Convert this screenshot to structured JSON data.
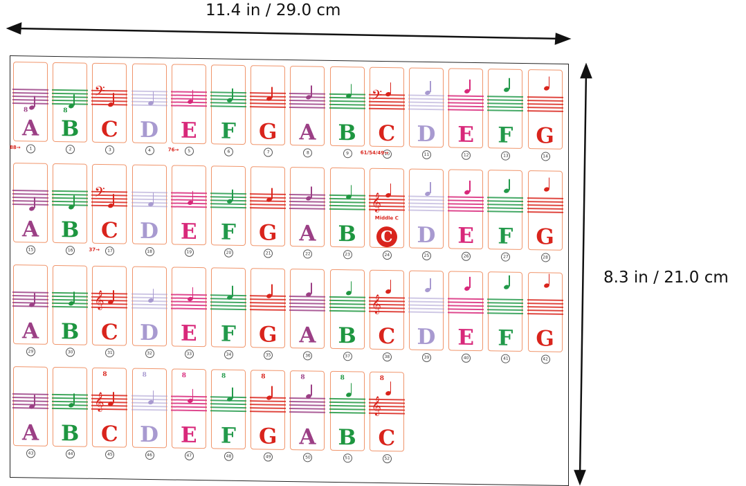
{
  "dimensions": {
    "width_label": "11.4 in / 29.0 cm",
    "height_label": "8.3 in / 21.0 cm"
  },
  "colors": {
    "A": "#9b3f85",
    "B": "#1e9640",
    "C": "#d9241c",
    "D": "#a89ad0",
    "E": "#d8287a",
    "F": "#22994a",
    "G": "#d9241c"
  },
  "middle_c_label": "Middle C",
  "key_labels": [
    {
      "card": 1,
      "text": "88→"
    },
    {
      "card": 5,
      "text": "76→"
    },
    {
      "card": 10,
      "text": "61/54/49→"
    },
    {
      "card": 17,
      "text": "37→"
    }
  ],
  "clefs": {
    "bass": "𝄢",
    "treble": "𝄞"
  },
  "octave_mark": "8",
  "rows": [
    {
      "cards": [
        {
          "n": "1",
          "l": "A"
        },
        {
          "n": "2",
          "l": "B"
        },
        {
          "n": "3",
          "l": "C"
        },
        {
          "n": "4",
          "l": "D"
        },
        {
          "n": "5",
          "l": "E"
        },
        {
          "n": "6",
          "l": "F"
        },
        {
          "n": "7",
          "l": "G"
        },
        {
          "n": "8",
          "l": "A"
        },
        {
          "n": "9",
          "l": "B"
        },
        {
          "n": "10",
          "l": "C"
        },
        {
          "n": "11",
          "l": "D"
        },
        {
          "n": "12",
          "l": "E"
        },
        {
          "n": "13",
          "l": "F"
        },
        {
          "n": "14",
          "l": "G"
        }
      ]
    },
    {
      "cards": [
        {
          "n": "15",
          "l": "A"
        },
        {
          "n": "16",
          "l": "B"
        },
        {
          "n": "17",
          "l": "C"
        },
        {
          "n": "18",
          "l": "D"
        },
        {
          "n": "19",
          "l": "E"
        },
        {
          "n": "20",
          "l": "F"
        },
        {
          "n": "21",
          "l": "G"
        },
        {
          "n": "22",
          "l": "A"
        },
        {
          "n": "23",
          "l": "B"
        },
        {
          "n": "24",
          "l": "C"
        },
        {
          "n": "25",
          "l": "D"
        },
        {
          "n": "26",
          "l": "E"
        },
        {
          "n": "27",
          "l": "F"
        },
        {
          "n": "28",
          "l": "G"
        }
      ]
    },
    {
      "cards": [
        {
          "n": "29",
          "l": "A"
        },
        {
          "n": "30",
          "l": "B"
        },
        {
          "n": "31",
          "l": "C"
        },
        {
          "n": "32",
          "l": "D"
        },
        {
          "n": "33",
          "l": "E"
        },
        {
          "n": "34",
          "l": "F"
        },
        {
          "n": "35",
          "l": "G"
        },
        {
          "n": "36",
          "l": "A"
        },
        {
          "n": "37",
          "l": "B"
        },
        {
          "n": "38",
          "l": "C"
        },
        {
          "n": "39",
          "l": "D"
        },
        {
          "n": "40",
          "l": "E"
        },
        {
          "n": "41",
          "l": "F"
        },
        {
          "n": "42",
          "l": "G"
        }
      ]
    },
    {
      "cards": [
        {
          "n": "43",
          "l": "A"
        },
        {
          "n": "44",
          "l": "B"
        },
        {
          "n": "45",
          "l": "C"
        },
        {
          "n": "46",
          "l": "D"
        },
        {
          "n": "47",
          "l": "E"
        },
        {
          "n": "48",
          "l": "F"
        },
        {
          "n": "49",
          "l": "G"
        },
        {
          "n": "50",
          "l": "A"
        },
        {
          "n": "51",
          "l": "B"
        },
        {
          "n": "52",
          "l": "C"
        }
      ]
    }
  ]
}
